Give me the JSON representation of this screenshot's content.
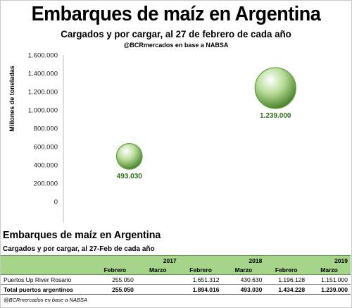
{
  "header": {
    "title": "Embarques de maíz en Argentina",
    "subtitle": "Cargados y por cargar, al 27 de febrero de cada año",
    "credit": "@BCRmercados en base a NABSA"
  },
  "chart_data": {
    "type": "scatter",
    "title": "Embarques de maíz en Argentina",
    "subtitle": "Cargados y por cargar, al 27 de febrero de cada año",
    "ylabel": "Millones de toneladas",
    "ylim": [
      0,
      1600000
    ],
    "yticks": [
      "0",
      "200.000",
      "400.000",
      "600.000",
      "800.000",
      "1.000.000",
      "1.200.000",
      "1.400.000",
      "1.600.000"
    ],
    "grid": false,
    "legend": "none",
    "bubble_color": "#5f9e3a",
    "points": [
      {
        "x": 2018,
        "y": 493030,
        "label": "493.030"
      },
      {
        "x": 2019,
        "y": 1239000,
        "label": "1.239.000"
      }
    ]
  },
  "table": {
    "title": "Embarques de maíz en Argentina",
    "subtitle": "Cargados y por cargar, al 27-Feb de cada año",
    "years": [
      "2017",
      "2018",
      "2019"
    ],
    "months": [
      "Febrero",
      "Marzo",
      "Febrero",
      "Marzo",
      "Febrero",
      "Marzo"
    ],
    "rows": [
      {
        "label": "Puertos Up River Rosario",
        "values": [
          "255.050",
          "",
          "1.651.312",
          "430.630",
          "1.196.128",
          "1.151.000"
        ]
      },
      {
        "label": "Total puertos argentinos",
        "values": [
          "255.050",
          "",
          "1.894.016",
          "493.030",
          "1.434.228",
          "1.239.000"
        ]
      }
    ],
    "footnote": "@BCRmercados en base a NABSA",
    "header_color": "#a6d48a"
  }
}
